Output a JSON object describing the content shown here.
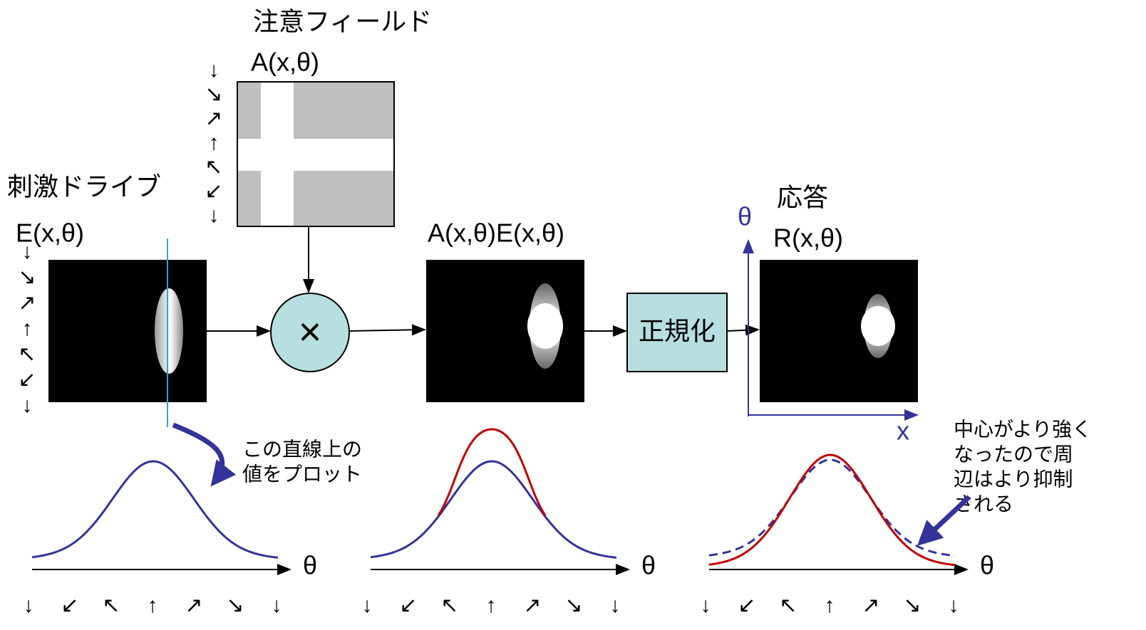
{
  "attention_field": {
    "title": "注意フィールド",
    "label": "A(x,θ)"
  },
  "stimulus": {
    "title": "刺激ドライブ",
    "label": "E(x,θ)"
  },
  "multiply": {
    "symbol": "×"
  },
  "product": {
    "label": "A(x,θ)E(x,θ)"
  },
  "normalize": {
    "label": "正規化"
  },
  "response": {
    "title": "応答",
    "label": "R(x,θ)",
    "y_axis": "θ",
    "x_axis": "x"
  },
  "orientation_column": [
    "↓",
    "↘",
    "↗",
    "↑",
    "↖",
    "↙",
    "↓"
  ],
  "orientation_row": [
    "↓",
    "↙",
    "↖",
    "↑",
    "↗",
    "↘",
    "↓"
  ],
  "notes": {
    "plot_line": [
      "この直線上の",
      "値をプロット"
    ],
    "suppression": [
      "中心がより強く",
      "なったので周",
      "辺はより抑制",
      "される"
    ]
  },
  "plots": [
    {
      "axis_label": "θ"
    },
    {
      "axis_label": "θ"
    },
    {
      "axis_label": "θ"
    }
  ]
}
